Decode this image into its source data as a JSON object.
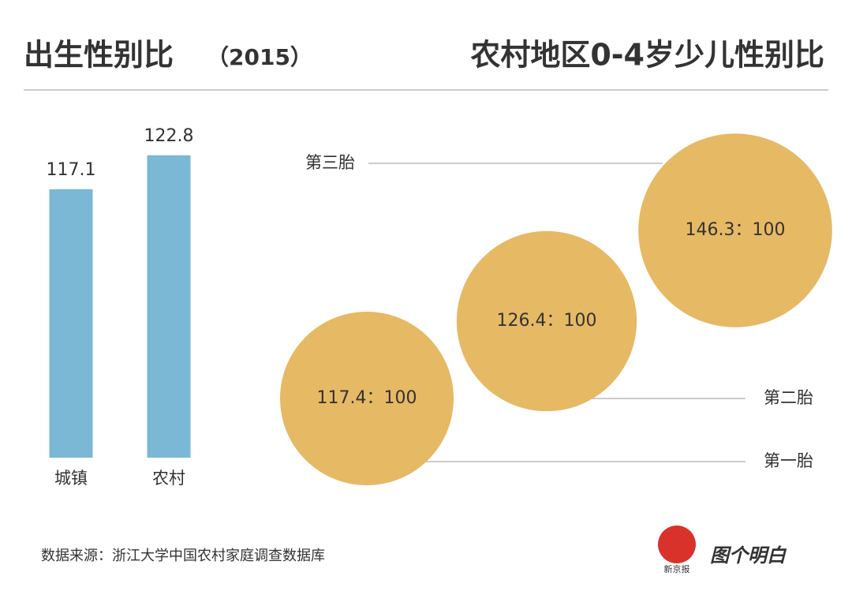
{
  "chart_data": [
    {
      "type": "bar",
      "title": "出生性别比",
      "subtitle": "（2015）",
      "categories": [
        "城镇",
        "农村"
      ],
      "values": [
        117.1,
        122.8
      ],
      "color": "#7ab8d6",
      "ylim": [
        72,
        129
      ]
    },
    {
      "type": "bubble",
      "title": "农村地区0-4岁少儿性别比",
      "categories": [
        "第一胎",
        "第二胎",
        "第三胎"
      ],
      "values": [
        117.4,
        126.4,
        146.3
      ],
      "value_labels": [
        "117.4：100",
        "126.4：100",
        "146.3：100"
      ],
      "color": "#e6b964"
    }
  ],
  "source": "数据来源：浙江大学中国农村家庭调查数据库",
  "logo": {
    "name": "新京报",
    "slogan": "图个明白"
  }
}
